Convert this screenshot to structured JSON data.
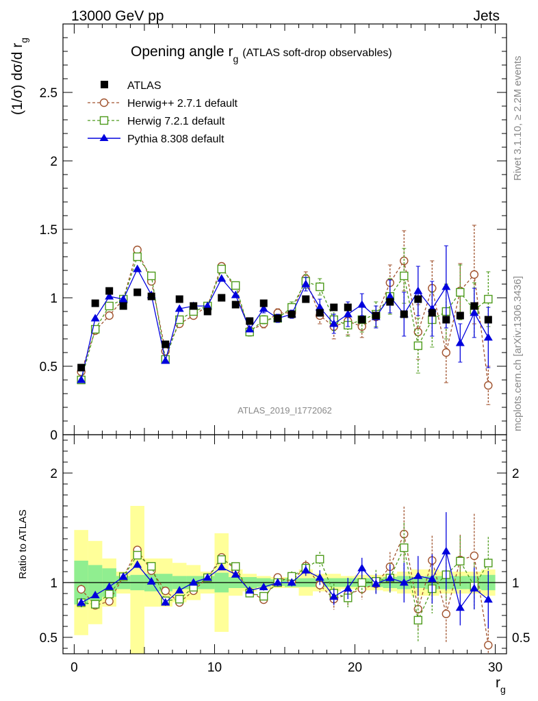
{
  "header": {
    "left": "13000 GeV pp",
    "right": "Jets"
  },
  "title": {
    "main": "Opening angle r",
    "sub": "g",
    "extra": "(ATLAS soft-drop observables)"
  },
  "side": {
    "top": "Rivet 3.1.10, ≥ 2.2M events",
    "bottom": "mcplots.cern.ch [arXiv:1306.3436]"
  },
  "watermark": "ATLAS_2019_I1772062",
  "y_label": {
    "main": "(1/σ) dσ/d r",
    "sub": "g"
  },
  "ratio_label": "Ratio to ATLAS",
  "x_label": {
    "main": "r",
    "sub": "g"
  },
  "colors": {
    "atlas": "#000000",
    "herwigpp": "#a0522d",
    "herwig7": "#4c9a1a",
    "pythia": "#0000dd",
    "band_inner": "#90ee90",
    "band_outer": "#ffff99"
  },
  "chart_data": {
    "type": "line",
    "x": [
      0.5,
      1.5,
      2.5,
      3.5,
      4.5,
      5.5,
      6.5,
      7.5,
      8.5,
      9.5,
      10.5,
      11.5,
      12.5,
      13.5,
      14.5,
      15.5,
      16.5,
      17.5,
      18.5,
      19.5,
      20.5,
      21.5,
      22.5,
      23.5,
      24.5,
      25.5,
      26.5,
      27.5,
      28.5,
      29.5
    ],
    "xlim": [
      -0.8,
      30.8
    ],
    "main": {
      "ylim": [
        0,
        3.0
      ],
      "yticks": [
        0,
        0.5,
        1,
        1.5,
        2,
        2.5
      ],
      "ytick_labels": [
        "0",
        "0.5",
        "1",
        "1.5",
        "2",
        "2.5"
      ]
    },
    "ratio": {
      "ylim": [
        0.35,
        2.35
      ],
      "yticks": [
        0.5,
        1,
        2
      ],
      "ytick_labels": [
        "0.5",
        "1",
        "2"
      ],
      "band_inner": [
        0.2,
        0.16,
        0.13,
        0.06,
        0.07,
        0.08,
        0.08,
        0.06,
        0.06,
        0.06,
        0.09,
        0.05,
        0.05,
        0.04,
        0.03,
        0.04,
        0.04,
        0.04,
        0.04,
        0.04,
        0.04,
        0.04,
        0.05,
        0.06,
        0.05,
        0.06,
        0.06,
        0.06,
        0.06,
        0.07
      ],
      "band_outer": [
        0.48,
        0.38,
        0.22,
        0.1,
        0.7,
        0.22,
        0.22,
        0.18,
        0.16,
        0.1,
        0.45,
        0.12,
        0.08,
        0.06,
        0.05,
        0.05,
        0.12,
        0.08,
        0.08,
        0.06,
        0.07,
        0.07,
        0.08,
        0.1,
        0.12,
        0.12,
        0.1,
        0.1,
        0.1,
        0.12
      ]
    },
    "xticks": [
      0,
      10,
      20,
      30
    ],
    "xtick_labels": [
      "0",
      "10",
      "20",
      "30"
    ],
    "legend": {
      "placement": "top-left"
    },
    "series": [
      {
        "name": "ATLAS",
        "marker": "square-filled",
        "values": [
          0.49,
          0.96,
          1.05,
          0.94,
          1.04,
          1.01,
          0.66,
          0.99,
          0.94,
          0.9,
          1.0,
          0.95,
          0.83,
          0.96,
          0.85,
          0.88,
          0.99,
          0.89,
          0.93,
          0.93,
          0.84,
          0.87,
          0.97,
          0.88,
          0.99,
          0.89,
          0.84,
          0.87,
          0.94,
          0.84
        ],
        "errors": [
          0.02,
          0.02,
          0.02,
          0.02,
          0.02,
          0.02,
          0.02,
          0.02,
          0.02,
          0.02,
          0.02,
          0.02,
          0.02,
          0.02,
          0.02,
          0.02,
          0.02,
          0.02,
          0.02,
          0.02,
          0.02,
          0.02,
          0.02,
          0.02,
          0.02,
          0.02,
          0.02,
          0.02,
          0.02,
          0.02
        ]
      },
      {
        "name": "Herwig++ 2.7.1 default",
        "marker": "circle-open",
        "dash": "dashed",
        "values": [
          0.46,
          0.76,
          0.87,
          0.99,
          1.35,
          1.12,
          0.61,
          0.81,
          0.87,
          0.94,
          1.23,
          1.06,
          0.76,
          0.81,
          0.89,
          0.89,
          1.14,
          0.87,
          0.79,
          0.83,
          0.79,
          0.86,
          1.11,
          1.27,
          0.75,
          1.07,
          0.6,
          1.05,
          1.17,
          0.36
        ],
        "errors": [
          0.02,
          0.02,
          0.02,
          0.02,
          0.02,
          0.02,
          0.02,
          0.02,
          0.02,
          0.02,
          0.02,
          0.02,
          0.02,
          0.03,
          0.03,
          0.04,
          0.05,
          0.06,
          0.09,
          0.1,
          0.08,
          0.08,
          0.13,
          0.22,
          0.2,
          0.2,
          0.22,
          0.2,
          0.36,
          0.14
        ]
      },
      {
        "name": "Herwig 7.2.1 default",
        "marker": "square-open",
        "dash": "dashed",
        "values": [
          0.4,
          0.77,
          0.94,
          0.99,
          1.3,
          1.16,
          0.55,
          0.84,
          0.9,
          0.94,
          1.21,
          1.09,
          0.75,
          0.84,
          0.85,
          0.93,
          1.12,
          1.08,
          0.84,
          0.8,
          0.84,
          0.88,
          1.01,
          1.16,
          0.65,
          0.84,
          0.9,
          1.04,
          0.91,
          0.99
        ],
        "errors": [
          0.02,
          0.02,
          0.02,
          0.02,
          0.02,
          0.02,
          0.02,
          0.02,
          0.02,
          0.02,
          0.02,
          0.02,
          0.03,
          0.03,
          0.03,
          0.04,
          0.05,
          0.06,
          0.08,
          0.08,
          0.09,
          0.09,
          0.13,
          0.2,
          0.2,
          0.2,
          0.2,
          0.2,
          0.2,
          0.2
        ]
      },
      {
        "name": "Pythia 8.308 default",
        "marker": "triangle-filled",
        "dash": "solid",
        "values": [
          0.4,
          0.85,
          1.01,
          0.99,
          1.21,
          1.02,
          0.54,
          0.92,
          0.94,
          0.94,
          1.14,
          1.02,
          0.77,
          0.92,
          0.85,
          0.88,
          1.1,
          0.93,
          0.81,
          0.88,
          0.95,
          0.86,
          1.01,
          0.88,
          1.05,
          0.92,
          1.08,
          0.67,
          0.89,
          0.71
        ],
        "errors": [
          0.02,
          0.02,
          0.02,
          0.02,
          0.02,
          0.02,
          0.02,
          0.02,
          0.02,
          0.02,
          0.02,
          0.02,
          0.02,
          0.03,
          0.03,
          0.03,
          0.05,
          0.06,
          0.07,
          0.09,
          0.08,
          0.08,
          0.12,
          0.16,
          0.18,
          0.2,
          0.3,
          0.14,
          0.18,
          0.22
        ]
      }
    ]
  }
}
